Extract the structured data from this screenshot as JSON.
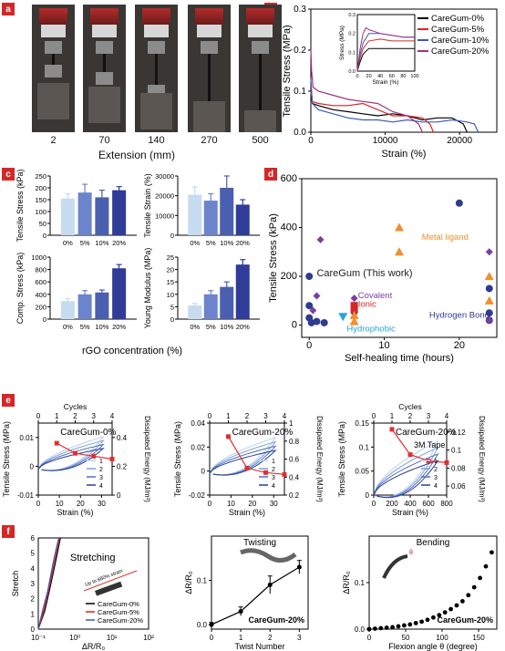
{
  "panels": {
    "a": {
      "tag": "a",
      "photos": [
        "2",
        "70",
        "140",
        "270",
        "500"
      ],
      "xlabel": "Extension (mm)"
    },
    "b": {
      "tag": "b"
    },
    "c": {
      "tag": "c",
      "xlabel": "rGO concentration (%)"
    },
    "d": {
      "tag": "d"
    },
    "e": {
      "tag": "e"
    },
    "f": {
      "tag": "f"
    }
  },
  "chart_data": [
    {
      "id": "b",
      "type": "line",
      "xlabel": "Strain (%)",
      "ylabel": "Tensile Stress (MPa)",
      "xlim": [
        0,
        25000
      ],
      "ylim": [
        0,
        0.3
      ],
      "xticks": [
        0,
        10000,
        20000
      ],
      "yticks": [
        0.0,
        0.1,
        0.2,
        0.3
      ],
      "legend_position": "top-right",
      "series": [
        {
          "name": "CareGum-0%",
          "color": "#000000",
          "x": [
            0,
            200,
            1000,
            3000,
            5000,
            7000,
            9000,
            11000,
            13000,
            15000,
            17000,
            19000,
            20500,
            21000
          ],
          "y": [
            0.12,
            0.07,
            0.065,
            0.055,
            0.05,
            0.045,
            0.04,
            0.045,
            0.04,
            0.03,
            0.035,
            0.035,
            0.02,
            0.0
          ]
        },
        {
          "name": "CareGum-5%",
          "color": "#d62728",
          "x": [
            0,
            200,
            1000,
            3000,
            5000,
            7000,
            9000,
            11000,
            13000,
            15000,
            16000,
            16500
          ],
          "y": [
            0.1,
            0.075,
            0.07,
            0.065,
            0.065,
            0.07,
            0.055,
            0.04,
            0.04,
            0.035,
            0.02,
            0.0
          ]
        },
        {
          "name": "CareGum-10%",
          "color": "#3b5ab5",
          "x": [
            0,
            200,
            1000,
            3000,
            5000,
            7000,
            9000,
            11000,
            13000,
            15000,
            17000,
            19000,
            21000,
            22000,
            22500
          ],
          "y": [
            0.13,
            0.07,
            0.055,
            0.045,
            0.035,
            0.03,
            0.03,
            0.025,
            0.03,
            0.025,
            0.025,
            0.03,
            0.025,
            0.02,
            0.0
          ]
        },
        {
          "name": "CareGum-20%",
          "color": "#a03080",
          "x": [
            0,
            100,
            300,
            1000,
            3000,
            5000,
            7000,
            9000,
            11000,
            13000,
            14500,
            15000
          ],
          "y": [
            0.2,
            0.15,
            0.11,
            0.1,
            0.09,
            0.08,
            0.075,
            0.07,
            0.05,
            0.04,
            0.02,
            0.0
          ]
        }
      ],
      "inset": {
        "xlabel": "Strain (%)",
        "ylabel": "Stress (MPa)",
        "xlim": [
          0,
          100
        ],
        "ylim": [
          0,
          0.3
        ],
        "xticks": [
          0,
          20,
          40,
          60,
          80,
          100
        ],
        "yticks": [
          0.0,
          0.1,
          0.2,
          0.3
        ],
        "series": [
          {
            "color": "#000000",
            "x": [
              0,
              5,
              10,
              20,
              40,
              60,
              80,
              100
            ],
            "y": [
              0,
              0.05,
              0.09,
              0.12,
              0.12,
              0.12,
              0.12,
              0.12
            ]
          },
          {
            "color": "#d62728",
            "x": [
              0,
              5,
              10,
              20,
              40,
              60,
              80,
              100
            ],
            "y": [
              0,
              0.07,
              0.12,
              0.16,
              0.17,
              0.16,
              0.16,
              0.16
            ]
          },
          {
            "color": "#3b5ab5",
            "x": [
              0,
              5,
              10,
              20,
              40,
              60,
              80,
              100
            ],
            "y": [
              0,
              0.09,
              0.15,
              0.2,
              0.2,
              0.19,
              0.18,
              0.18
            ]
          },
          {
            "color": "#a03080",
            "x": [
              0,
              5,
              10,
              15,
              20,
              40,
              60,
              80,
              100
            ],
            "y": [
              0,
              0.12,
              0.2,
              0.23,
              0.22,
              0.2,
              0.19,
              0.18,
              0.18
            ]
          }
        ]
      }
    },
    {
      "id": "c1",
      "type": "bar",
      "ylabel": "Tensile Stress (kPa)",
      "categories": [
        "0%",
        "5%",
        "10%",
        "20%"
      ],
      "values": [
        155,
        180,
        160,
        190
      ],
      "errors": [
        20,
        35,
        30,
        15
      ],
      "ylim": [
        0,
        250
      ],
      "yticks": [
        0,
        50,
        100,
        150,
        200,
        250
      ]
    },
    {
      "id": "c2",
      "type": "bar",
      "ylabel": "Tensile Strain (%)",
      "categories": [
        "0%",
        "5%",
        "10%",
        "20%"
      ],
      "values": [
        20500,
        17500,
        24000,
        15500
      ],
      "errors": [
        4000,
        3500,
        6000,
        2500
      ],
      "ylim": [
        0,
        30000
      ],
      "yticks": [
        0,
        10000,
        20000,
        30000
      ]
    },
    {
      "id": "c3",
      "type": "bar",
      "ylabel": "Comp. Stress (kPa)",
      "categories": [
        "0%",
        "5%",
        "10%",
        "20%"
      ],
      "values": [
        290,
        400,
        430,
        820
      ],
      "errors": [
        40,
        60,
        40,
        60
      ],
      "ylim": [
        0,
        1000
      ],
      "yticks": [
        0,
        200,
        400,
        600,
        800,
        1000
      ]
    },
    {
      "id": "c4",
      "type": "bar",
      "ylabel": "Young Modulus (MPa)",
      "categories": [
        "0%",
        "5%",
        "10%",
        "20%"
      ],
      "values": [
        5.5,
        10,
        13,
        22
      ],
      "errors": [
        0.8,
        1.5,
        2,
        2
      ],
      "ylim": [
        0,
        25
      ],
      "yticks": [
        0,
        5,
        10,
        15,
        20,
        25
      ]
    },
    {
      "id": "d",
      "type": "scatter",
      "xlabel": "Self-healing time (hours)",
      "ylabel": "Tensile Stress (kPa)",
      "xlim": [
        -1,
        25
      ],
      "ylim": [
        -50,
        600
      ],
      "xticks": [
        0,
        10,
        20
      ],
      "yticks": [
        0,
        200,
        400,
        600
      ],
      "labels": [
        {
          "text": "Metal ligand",
          "color": "#f28e2b",
          "x": 15,
          "y": 350
        },
        {
          "text": "CareGum (This work)",
          "color": "#222222",
          "x": 1,
          "y": 200
        },
        {
          "text": "Covalent",
          "color": "#7b3fa0",
          "x": 6.5,
          "y": 110
        },
        {
          "text": "Ionic",
          "color": "#d62728",
          "x": 6.5,
          "y": 75
        },
        {
          "text": "Hydrogen Bond",
          "color": "#2f3b8f",
          "x": 16,
          "y": 30
        },
        {
          "text": "Hydrophobic",
          "color": "#29a3d8",
          "x": 5,
          "y": -25
        }
      ],
      "points": [
        {
          "shape": "circle",
          "color": "#2f3b8f",
          "x": 0,
          "y": 200
        },
        {
          "shape": "circle",
          "color": "#2f3b8f",
          "x": 0,
          "y": 80
        },
        {
          "shape": "circle",
          "color": "#2f3b8f",
          "x": 0,
          "y": 30
        },
        {
          "shape": "circle",
          "color": "#2f3b8f",
          "x": 0.3,
          "y": 10
        },
        {
          "shape": "circle",
          "color": "#2f3b8f",
          "x": 1,
          "y": 15
        },
        {
          "shape": "circle",
          "color": "#2f3b8f",
          "x": 2,
          "y": 10
        },
        {
          "shape": "circle",
          "color": "#2f3b8f",
          "x": 6,
          "y": 55
        },
        {
          "shape": "circle",
          "color": "#2f3b8f",
          "x": 20,
          "y": 500
        },
        {
          "shape": "circle",
          "color": "#2f3b8f",
          "x": 24,
          "y": 150
        },
        {
          "shape": "circle",
          "color": "#2f3b8f",
          "x": 24,
          "y": 50
        },
        {
          "shape": "circle",
          "color": "#2f3b8f",
          "x": 24,
          "y": 20
        },
        {
          "shape": "diamond",
          "color": "#7b3fa0",
          "x": 1.5,
          "y": 350
        },
        {
          "shape": "diamond",
          "color": "#7b3fa0",
          "x": 1,
          "y": 120
        },
        {
          "shape": "diamond",
          "color": "#7b3fa0",
          "x": 0.5,
          "y": 60
        },
        {
          "shape": "diamond",
          "color": "#7b3fa0",
          "x": 6,
          "y": 110
        },
        {
          "shape": "diamond",
          "color": "#7b3fa0",
          "x": 24,
          "y": 300
        },
        {
          "shape": "diamond",
          "color": "#7b3fa0",
          "x": 24,
          "y": 20
        },
        {
          "shape": "square",
          "color": "#d62728",
          "x": 6,
          "y": 80
        },
        {
          "shape": "square",
          "color": "#d62728",
          "x": 6,
          "y": 65
        },
        {
          "shape": "triangle-up",
          "color": "#f28e2b",
          "x": 12,
          "y": 400
        },
        {
          "shape": "triangle-up",
          "color": "#f28e2b",
          "x": 12,
          "y": 300
        },
        {
          "shape": "triangle-up",
          "color": "#f28e2b",
          "x": 6,
          "y": 40
        },
        {
          "shape": "triangle-up",
          "color": "#f28e2b",
          "x": 6,
          "y": 15
        },
        {
          "shape": "triangle-up",
          "color": "#f28e2b",
          "x": 24,
          "y": 200
        },
        {
          "shape": "triangle-up",
          "color": "#f28e2b",
          "x": 24,
          "y": 100
        },
        {
          "shape": "triangle-down",
          "color": "#29a3d8",
          "x": 4.5,
          "y": 35
        }
      ]
    },
    {
      "id": "e1",
      "type": "line",
      "name_label": "CareGum-0%",
      "xlabel": "Strain (%)",
      "ylabel": "Tensile Stress (MPa)",
      "top_label": "Cycles",
      "right_label": "Dissipated Energy (MJ/m³)",
      "xlim": [
        0,
        35
      ],
      "ylim": [
        -0.01,
        0.015
      ],
      "xticks": [
        0,
        10,
        20,
        30
      ],
      "yticks": [
        -0.01,
        0.0,
        0.01
      ],
      "top_ticks": [
        0,
        1,
        2,
        3,
        4
      ],
      "right_ticks": [
        0.0,
        0.2,
        0.4
      ],
      "right_ylim": [
        0,
        0.5
      ],
      "cycles": [
        "1",
        "2",
        "3",
        "4"
      ],
      "energy": [
        {
          "cycle": 1,
          "value": 0.36
        },
        {
          "cycle": 2,
          "value": 0.29
        },
        {
          "cycle": 3,
          "value": 0.27
        },
        {
          "cycle": 4,
          "value": 0.25
        }
      ]
    },
    {
      "id": "e2",
      "type": "line",
      "name_label": "CareGum-20%",
      "xlabel": "Strain (%)",
      "ylabel": "Tensile Stress (MPa)",
      "right_label": "Dissipated Energy (MJ/m³)",
      "xlim": [
        0,
        35
      ],
      "ylim": [
        -0.02,
        0.04
      ],
      "xticks": [
        0,
        10,
        20,
        30
      ],
      "yticks": [
        -0.02,
        0.0,
        0.02,
        0.04
      ],
      "top_ticks": [
        0,
        1,
        2,
        3,
        4
      ],
      "right_ticks": [
        0.2,
        0.4,
        0.6,
        0.8,
        1.0
      ],
      "right_ylim": [
        0.2,
        1.0
      ],
      "cycles": [
        "1",
        "2",
        "3",
        "4"
      ],
      "energy": [
        {
          "cycle": 1,
          "value": 0.85
        },
        {
          "cycle": 2,
          "value": 0.5
        },
        {
          "cycle": 3,
          "value": 0.45
        },
        {
          "cycle": 4,
          "value": 0.43
        }
      ]
    },
    {
      "id": "e3",
      "type": "line",
      "name_label": "CareGum-20%",
      "sub_label": "3M Tape",
      "top_label": "Cycles",
      "xlabel": "Strain (%)",
      "ylabel": "Tensile Stress (MPa)",
      "right_label": "Dissipated Energy (MJ/m³)",
      "xlim": [
        0,
        800
      ],
      "ylim": [
        0,
        0.15
      ],
      "xticks": [
        0,
        200,
        400,
        600,
        800
      ],
      "yticks": [
        0.0,
        0.05,
        0.1,
        0.15
      ],
      "top_ticks": [
        0,
        1,
        2,
        3,
        4
      ],
      "right_ticks": [
        0.06,
        0.08,
        0.1,
        0.12
      ],
      "right_ylim": [
        0.05,
        0.13
      ],
      "cycles": [
        "1",
        "2",
        "3",
        "4"
      ],
      "energy": [
        {
          "cycle": 1,
          "value": 0.123
        },
        {
          "cycle": 2,
          "value": 0.095
        },
        {
          "cycle": 3,
          "value": 0.088
        },
        {
          "cycle": 4,
          "value": 0.086
        }
      ]
    },
    {
      "id": "f1",
      "type": "line",
      "title": "Stretching",
      "note": "Up to 680% strain",
      "xlabel": "ΔR/R₀",
      "ylabel": "Stretch",
      "xlim_log": [
        0.1,
        100
      ],
      "ylim": [
        0,
        6
      ],
      "yticks": [
        0,
        1,
        2,
        3,
        4,
        5,
        6
      ],
      "xticks": [
        "10⁻¹",
        "10⁰",
        "10¹",
        "10²"
      ],
      "legend_position": "bottom-right",
      "series": [
        {
          "name": "CareGum-0%",
          "color": "#000000",
          "x": [
            0.1,
            0.15,
            0.2,
            0.3,
            0.4
          ],
          "y": [
            0,
            1.2,
            2.5,
            4.5,
            6
          ]
        },
        {
          "name": "CareGum-5%",
          "color": "#d62728",
          "x": [
            0.1,
            0.14,
            0.19,
            0.28,
            0.38
          ],
          "y": [
            0,
            1.2,
            2.5,
            4.5,
            6
          ]
        },
        {
          "name": "CareGum-20%",
          "color": "#3b5ab5",
          "x": [
            0.1,
            0.13,
            0.18,
            0.26,
            0.36
          ],
          "y": [
            0,
            1.2,
            2.5,
            4.5,
            6
          ]
        }
      ]
    },
    {
      "id": "f2",
      "type": "line",
      "title": "Twisting",
      "label": "CareGum-20%",
      "xlabel": "Twist Number",
      "ylabel": "ΔR/R₀",
      "xlim": [
        0,
        3.3
      ],
      "ylim": [
        -0.01,
        0.2
      ],
      "xticks": [
        0,
        1,
        2,
        3
      ],
      "yticks": [
        0.0,
        0.1
      ],
      "x": [
        0,
        1,
        2,
        3
      ],
      "y": [
        0,
        0.03,
        0.09,
        0.13
      ],
      "errors": [
        0.005,
        0.01,
        0.02,
        0.015
      ]
    },
    {
      "id": "f3",
      "type": "scatter",
      "title": "Bending",
      "label": "CareGum-20%",
      "xlabel": "Flexion angle θ (degree)",
      "ylabel": "ΔR/R₀",
      "xlim": [
        0,
        175
      ],
      "ylim": [
        0,
        0.2
      ],
      "xticks": [
        0,
        50,
        100,
        150
      ],
      "yticks": [
        0.0,
        0.1
      ],
      "x": [
        0,
        8,
        16,
        24,
        32,
        40,
        48,
        56,
        64,
        72,
        80,
        88,
        96,
        104,
        112,
        120,
        128,
        136,
        144,
        152,
        160,
        168
      ],
      "y": [
        0,
        0.001,
        0.002,
        0.003,
        0.004,
        0.006,
        0.008,
        0.01,
        0.013,
        0.016,
        0.02,
        0.025,
        0.03,
        0.036,
        0.043,
        0.051,
        0.06,
        0.073,
        0.09,
        0.11,
        0.135,
        0.165
      ]
    }
  ]
}
